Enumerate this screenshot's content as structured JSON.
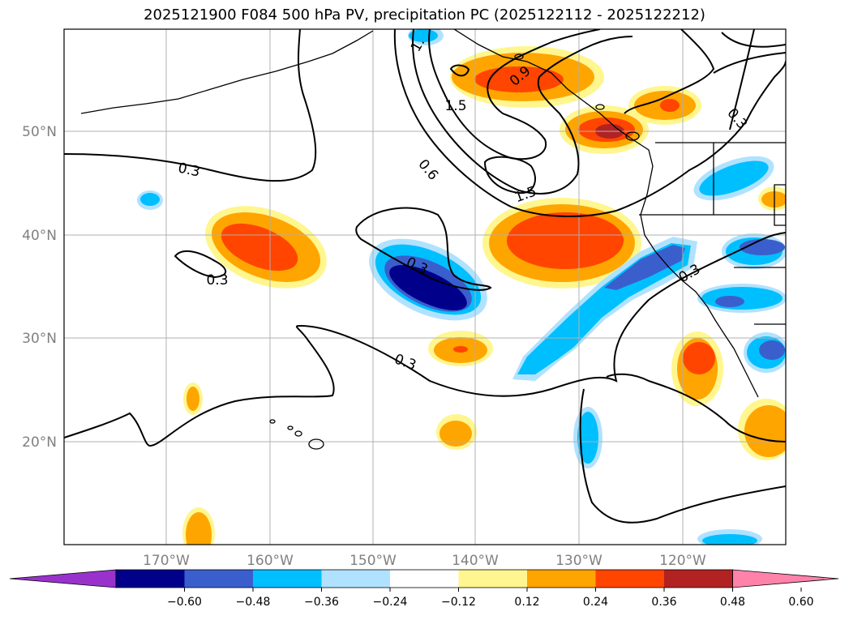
{
  "title": "2025121900 F084 500 hPa PV, precipitation PC (2025122112 - 2025122212)",
  "map": {
    "lat_labels": [
      "50°N",
      "40°N",
      "30°N",
      "20°N"
    ],
    "lon_labels": [
      "170°W",
      "160°W",
      "150°W",
      "140°W",
      "130°W",
      "120°W"
    ],
    "contour_labels": [
      "0.3",
      "0.3",
      "0.3",
      "0.3",
      "0.3",
      "0.6",
      "1.5",
      "1.5",
      "1.",
      "0.9"
    ]
  },
  "colorbar": {
    "colors": [
      "#9932cc",
      "#00008b",
      "#3a5fcd",
      "#00bfff",
      "#b0e2ff",
      "#ffffff",
      "#fff68f",
      "#ffa500",
      "#ff4500",
      "#b22222",
      "#ff82ab"
    ],
    "tick_labels": [
      "−0.60",
      "−0.48",
      "−0.36",
      "−0.24",
      "−0.12",
      "0.12",
      "0.24",
      "0.36",
      "0.48",
      "0.60"
    ]
  }
}
